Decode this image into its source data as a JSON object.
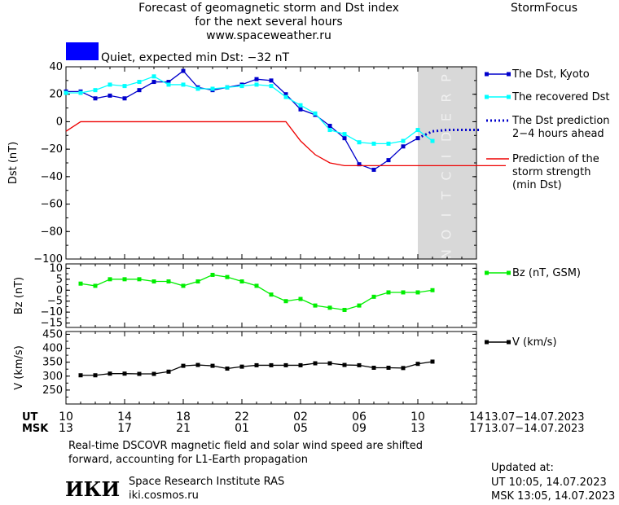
{
  "header": {
    "title_lines": [
      "Forecast of geomagnetic storm and Dst index",
      "for the next several hours",
      "www.spaceweather.ru"
    ],
    "brand": "StormFocus",
    "status_color": "#0000ff",
    "status_text": "Quiet, expected min Dst: −32 nT"
  },
  "prediction_zone_text": "PREDICTION",
  "time_axis": {
    "ut_label": "UT",
    "msk_label": "MSK",
    "ut_ticks": [
      "10",
      "14",
      "18",
      "22",
      "02",
      "06",
      "10",
      "14"
    ],
    "msk_ticks": [
      "13",
      "17",
      "21",
      "01",
      "05",
      "09",
      "13",
      "17"
    ],
    "ut_range": "13.07−14.07.2023",
    "msk_range": "13.07−14.07.2023"
  },
  "footer": {
    "note_line1": "Real-time DSCOVR magnetic field and solar wind speed are shifted",
    "note_line2": "forward, accounting for L1-Earth propagation",
    "logo_text": "ИКИ",
    "institute": "Space Research Institute RAS",
    "site": "iki.cosmos.ru",
    "updated_label": "Updated at:",
    "updated_ut": "UT   10:05, 14.07.2023",
    "updated_msk": "MSK 13:05, 14.07.2023"
  },
  "chart_data": [
    {
      "type": "line",
      "ylabel": "Dst (nT)",
      "ylim": [
        -100,
        40
      ],
      "yticks": [
        40,
        20,
        0,
        -20,
        -40,
        -60,
        -80,
        -100
      ],
      "x_range_hours": [
        0,
        28
      ],
      "series": [
        {
          "name": "The Dst, Kyoto",
          "color": "#0000cc",
          "marker": "square",
          "x": [
            0,
            1,
            2,
            3,
            4,
            5,
            6,
            7,
            8,
            9,
            10,
            11,
            12,
            13,
            14,
            15,
            16,
            17,
            18,
            19,
            20,
            21,
            22,
            23,
            24
          ],
          "y": [
            22,
            22,
            17,
            19,
            17,
            23,
            29,
            29,
            37,
            25,
            23,
            25,
            27,
            31,
            30,
            20,
            9,
            5,
            -3,
            -12,
            -31,
            -35,
            -28,
            -18,
            -12
          ]
        },
        {
          "name": "The recovered Dst",
          "color": "#00ffff",
          "marker": "square",
          "x": [
            0,
            1,
            2,
            3,
            4,
            5,
            6,
            7,
            8,
            9,
            10,
            11,
            12,
            13,
            14,
            15,
            16,
            17,
            18,
            19,
            20,
            21,
            22,
            23,
            24,
            25
          ],
          "y": [
            21,
            21,
            23,
            27,
            26,
            29,
            33,
            27,
            27,
            24,
            24,
            25,
            26,
            27,
            26,
            18,
            12,
            6,
            -6,
            -9,
            -15,
            -16,
            -16,
            -14,
            -6,
            -14
          ]
        },
        {
          "name": "The Dst prediction 2−4 hours ahead",
          "color": "#0000cc",
          "style": "dotted",
          "x": [
            24,
            25,
            26,
            27,
            28.2
          ],
          "y": [
            -12,
            -7,
            -6,
            -6,
            -6
          ]
        },
        {
          "name": "Prediction of the storm strength (min Dst)",
          "color": "#ee0000",
          "x": [
            0,
            1,
            2,
            3,
            4,
            5,
            6,
            7,
            8,
            9,
            10,
            11,
            12,
            13,
            14,
            15,
            16,
            17,
            18,
            19,
            20,
            21,
            22,
            23,
            24,
            25,
            26,
            27,
            28,
            29,
            30
          ],
          "y": [
            -7,
            0,
            0,
            0,
            0,
            0,
            0,
            0,
            0,
            0,
            0,
            0,
            0,
            0,
            0,
            0,
            -14,
            -24,
            -30,
            -32,
            -32,
            -32,
            -32,
            -32,
            -32,
            -32,
            -32,
            -32,
            -32,
            -32,
            -32
          ]
        }
      ],
      "prediction_zone_hours": [
        24,
        28
      ]
    },
    {
      "type": "line",
      "ylabel": "Bz (nT)",
      "ylim": [
        -17,
        12
      ],
      "yticks": [
        10,
        5,
        0,
        -5,
        -10,
        -15
      ],
      "series": [
        {
          "name": "Bz (nT, GSM)",
          "color": "#00ee00",
          "marker": "square",
          "x": [
            1,
            2,
            3,
            4,
            5,
            6,
            7,
            8,
            9,
            10,
            11,
            12,
            13,
            14,
            15,
            16,
            17,
            18,
            19,
            20,
            21,
            22,
            23,
            24,
            25
          ],
          "y": [
            3,
            2,
            5,
            5,
            5,
            4,
            4,
            2,
            4,
            7,
            6,
            4,
            2,
            -2,
            -5,
            -4,
            -7,
            -8,
            -9,
            -7,
            -3,
            -1,
            -1,
            -1,
            0
          ]
        }
      ]
    },
    {
      "type": "line",
      "ylabel": "V (km/s)",
      "ylim": [
        200,
        460
      ],
      "yticks": [
        450,
        400,
        350,
        300,
        250
      ],
      "series": [
        {
          "name": "V (km/s)",
          "color": "#000000",
          "marker": "square",
          "x": [
            1,
            2,
            3,
            4,
            5,
            6,
            7,
            8,
            9,
            10,
            11,
            12,
            13,
            14,
            15,
            16,
            17,
            18,
            19,
            20,
            21,
            22,
            23,
            24,
            25
          ],
          "y": [
            303,
            303,
            309,
            309,
            308,
            308,
            316,
            337,
            340,
            337,
            327,
            334,
            339,
            339,
            339,
            339,
            346,
            346,
            340,
            339,
            330,
            330,
            329,
            344,
            352
          ]
        }
      ]
    }
  ]
}
